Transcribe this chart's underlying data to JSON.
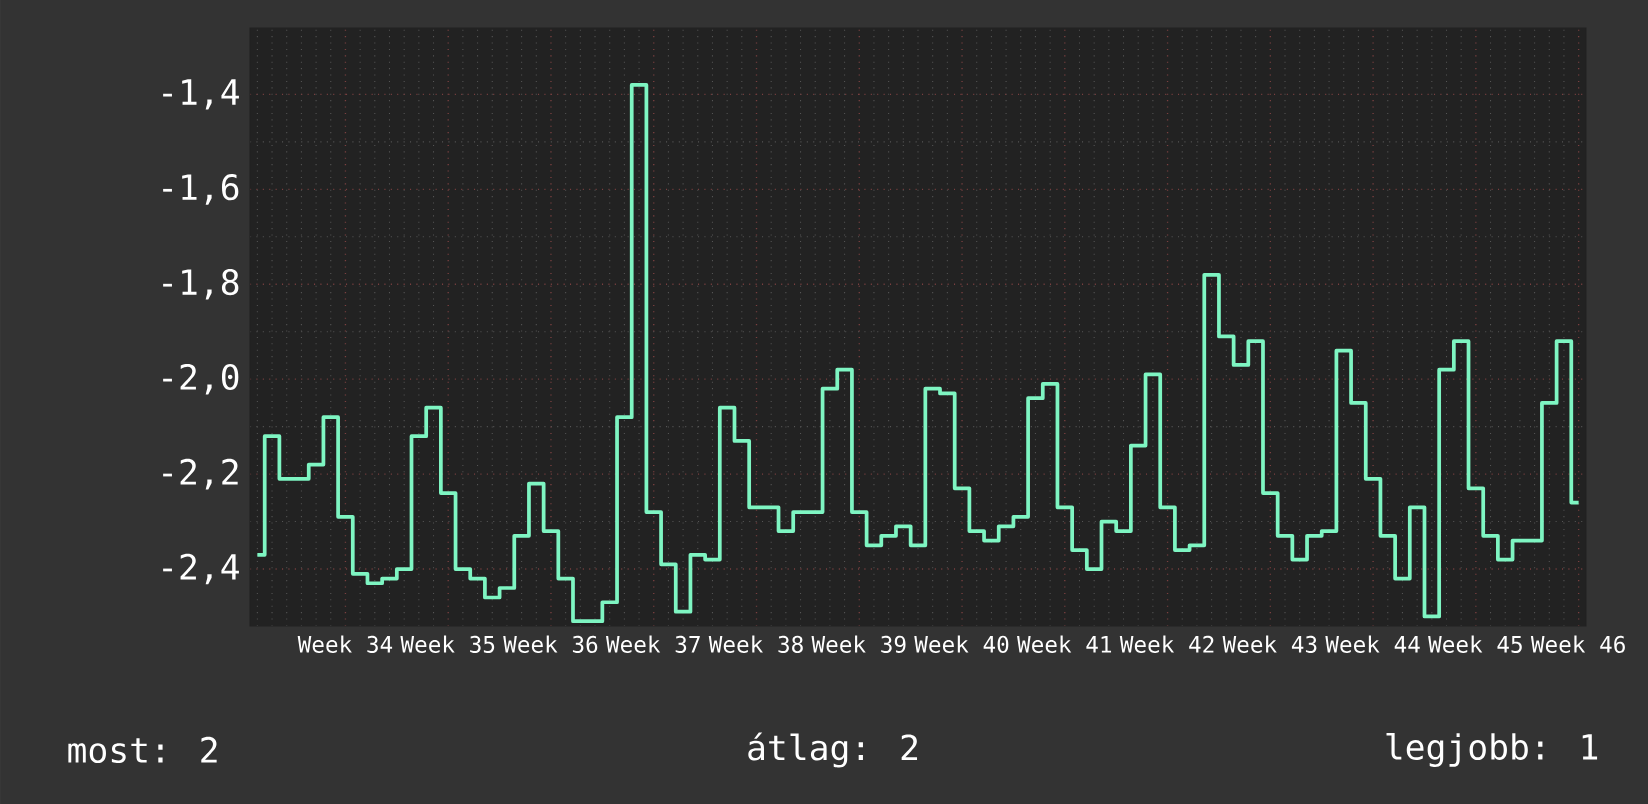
{
  "chart_data": {
    "type": "step",
    "color": "#7ef5c2",
    "categories": [
      null,
      null,
      null,
      null,
      null,
      null,
      "Week 34",
      null,
      null,
      null,
      null,
      null,
      null,
      "Week 35",
      null,
      null,
      null,
      null,
      null,
      null,
      "Week 36",
      null,
      null,
      null,
      null,
      null,
      null,
      "Week 37",
      null,
      null,
      null,
      null,
      null,
      null,
      "Week 38",
      null,
      null,
      null,
      null,
      null,
      null,
      "Week 39",
      null,
      null,
      null,
      null,
      null,
      null,
      "Week 40",
      null,
      null,
      null,
      null,
      null,
      null,
      "Week 41",
      null,
      null,
      null,
      null,
      null,
      null,
      "Week 42",
      null,
      null,
      null,
      null,
      null,
      null,
      "Week 43",
      null,
      null,
      null,
      null,
      null,
      null,
      "Week 44",
      null,
      null,
      null,
      null,
      null,
      null,
      "Week 45",
      null,
      null,
      null,
      null,
      null,
      null,
      "Week 46"
    ],
    "values": [
      -2.37,
      -2.12,
      -2.21,
      -2.21,
      -2.18,
      -2.08,
      -2.29,
      -2.41,
      -2.43,
      -2.42,
      -2.4,
      -2.12,
      -2.06,
      -2.24,
      -2.4,
      -2.42,
      -2.46,
      -2.44,
      -2.33,
      -2.22,
      -2.32,
      -2.42,
      -2.51,
      -2.51,
      -2.47,
      -2.08,
      -1.38,
      -2.28,
      -2.39,
      -2.49,
      -2.37,
      -2.38,
      -2.06,
      -2.13,
      -2.27,
      -2.27,
      -2.32,
      -2.28,
      -2.28,
      -2.02,
      -1.98,
      -2.28,
      -2.35,
      -2.33,
      -2.31,
      -2.35,
      -2.02,
      -2.03,
      -2.23,
      -2.32,
      -2.34,
      -2.31,
      -2.29,
      -2.04,
      -2.01,
      -2.27,
      -2.36,
      -2.4,
      -2.3,
      -2.32,
      -2.14,
      -1.99,
      -2.27,
      -2.36,
      -2.35,
      -1.78,
      -1.91,
      -1.97,
      -1.92,
      -2.24,
      -2.33,
      -2.38,
      -2.33,
      -2.32,
      -1.94,
      -2.05,
      -2.21,
      -2.33,
      -2.42,
      -2.27,
      -2.5,
      -1.98,
      -1.92,
      -2.23,
      -2.33,
      -2.38,
      -2.34,
      -2.34,
      -2.05,
      -1.92,
      -2.26
    ],
    "ylim": [
      -2.52,
      -1.26
    ],
    "yticks": [
      {
        "value": -2.4,
        "label": "-2,4"
      },
      {
        "value": -2.2,
        "label": "-2,2"
      },
      {
        "value": -2.0,
        "label": "-2,0"
      },
      {
        "value": -1.8,
        "label": "-1,8"
      },
      {
        "value": -1.6,
        "label": "-1,6"
      },
      {
        "value": -1.4,
        "label": "-1,4"
      }
    ],
    "grid": true,
    "annotations": [
      "most: 2",
      "átlag: 2",
      "legjobb: 1"
    ]
  }
}
